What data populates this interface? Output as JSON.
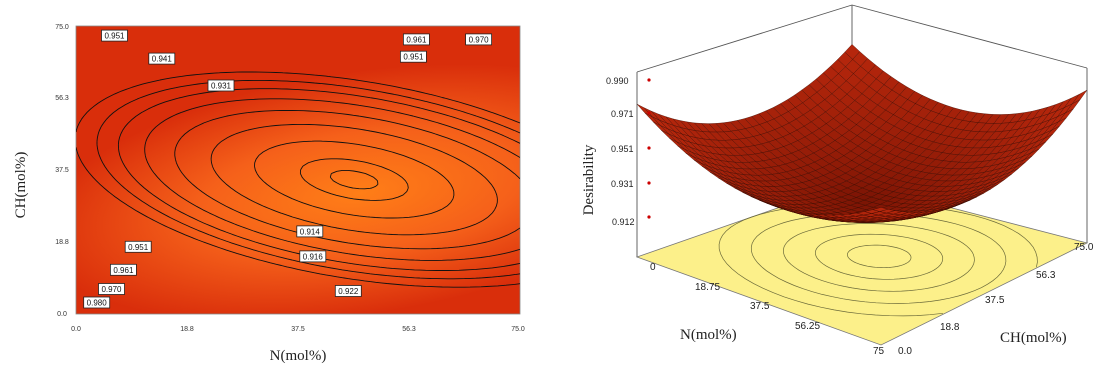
{
  "chart_data": [
    {
      "type": "contour",
      "xlabel": "N(mol%)",
      "ylabel": "CH(mol%)",
      "xlim": [
        0,
        75
      ],
      "ylim": [
        0,
        75
      ],
      "xticks": [
        "0.0",
        "18.8",
        "37.5",
        "56.3",
        "75.0"
      ],
      "yticks": [
        "0.0",
        "18.8",
        "37.5",
        "56.3",
        "75.0"
      ],
      "fill_colors": {
        "high": "#d92e0b",
        "low": "#ff7e17"
      },
      "line_color": "#111111",
      "contour_labels": [
        {
          "text": "0.951",
          "x": 6.5,
          "y": 72.5
        },
        {
          "text": "0.941",
          "x": 14.5,
          "y": 66.5
        },
        {
          "text": "0.931",
          "x": 24.5,
          "y": 59.5
        },
        {
          "text": "0.914",
          "x": 39.5,
          "y": 21.5
        },
        {
          "text": "0.916",
          "x": 40.0,
          "y": 15.0
        },
        {
          "text": "0.922",
          "x": 46.0,
          "y": 6.0
        },
        {
          "text": "0.951",
          "x": 10.5,
          "y": 17.5
        },
        {
          "text": "0.961",
          "x": 8.0,
          "y": 11.5
        },
        {
          "text": "0.970",
          "x": 6.0,
          "y": 6.5
        },
        {
          "text": "0.980",
          "x": 3.5,
          "y": 3.0
        },
        {
          "text": "0.951",
          "x": 57.0,
          "y": 67.0
        },
        {
          "text": "0.961",
          "x": 57.5,
          "y": 71.5
        },
        {
          "text": "0.970",
          "x": 68.0,
          "y": 71.5
        }
      ]
    },
    {
      "type": "surface3d",
      "zlabel": "Desirability",
      "xlabel": "N(mol%)",
      "ylabel": "CH(mol%)",
      "zticks": [
        "0.990",
        "0.971",
        "0.951",
        "0.931",
        "0.912"
      ],
      "n_ticks": [
        "0",
        "18.75",
        "37.5",
        "56.25",
        "75"
      ],
      "ch_ticks": [
        "0.0",
        "18.8",
        "37.5",
        "56.3",
        "75.0"
      ],
      "surface_colors": {
        "top": "#d43010",
        "bottom": "#7a1404",
        "mesh": "#3a0800"
      },
      "floor_color": "#fcf08a"
    }
  ]
}
